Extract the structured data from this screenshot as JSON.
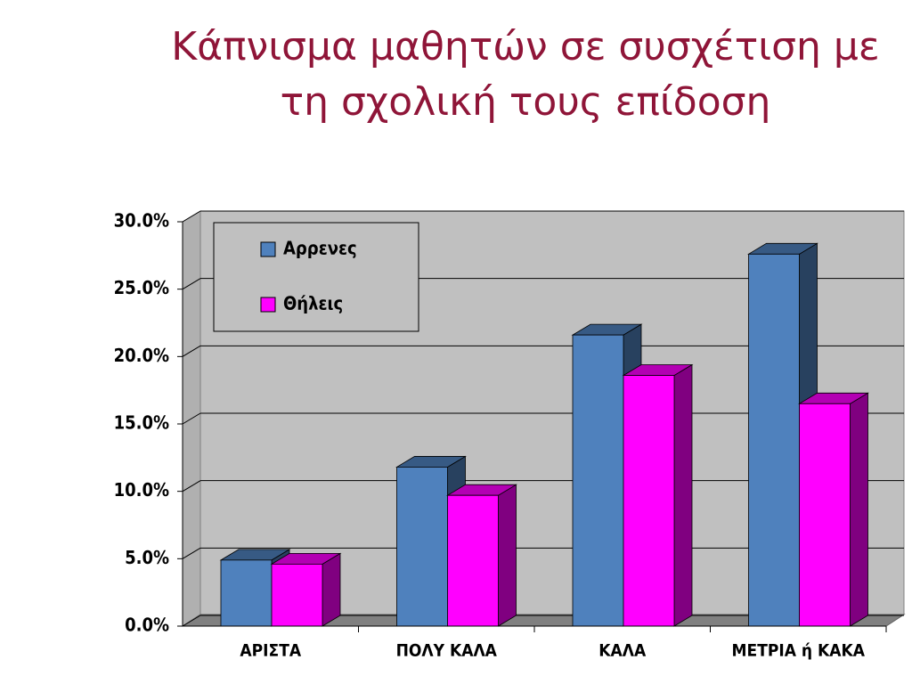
{
  "chart_data": {
    "type": "bar3d",
    "title": "Κάπνισμα μαθητών σε συσχέτιση με τη σχολική τους επίδοση",
    "categories": [
      "ΑΡΙΣΤΑ",
      "ΠΟΛΥ ΚΑΛΑ",
      "ΚΑΛΑ",
      "ΜΕΤΡΙΑ ή ΚΑΚΑ"
    ],
    "series": [
      {
        "name": "Αρρενες",
        "color": "#4f81bd",
        "values": [
          4.9,
          11.8,
          21.6,
          27.6
        ]
      },
      {
        "name": "Θήλεις",
        "color": "#ff00ff",
        "values": [
          4.6,
          9.7,
          18.6,
          16.5
        ]
      }
    ],
    "ylim": [
      0,
      30
    ],
    "yticks": [
      {
        "value": 0,
        "label": "0.0%"
      },
      {
        "value": 5,
        "label": "5.0%"
      },
      {
        "value": 10,
        "label": "10.0%"
      },
      {
        "value": 15,
        "label": "15.0%"
      },
      {
        "value": 20,
        "label": "20.0%"
      },
      {
        "value": 25,
        "label": "25.0%"
      },
      {
        "value": 30,
        "label": "30.0%"
      }
    ],
    "grid": true,
    "legend": "top-left"
  }
}
